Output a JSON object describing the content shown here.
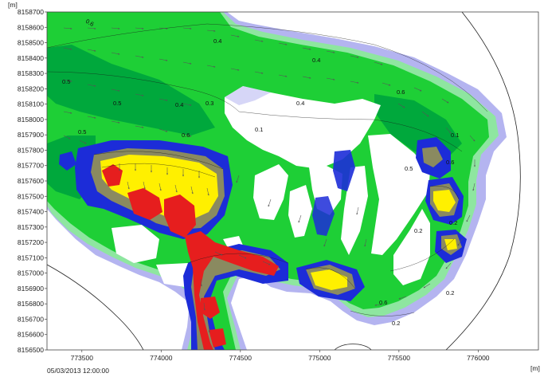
{
  "chart_data": {
    "type": "heatmap",
    "x_unit": "[m]",
    "y_unit": "[m]",
    "x_ticks": [
      773500,
      774000,
      774500,
      775000,
      775500,
      776000
    ],
    "y_ticks": [
      8156500,
      8156600,
      8156700,
      8156800,
      8156900,
      8157000,
      8157100,
      8157200,
      8157300,
      8157400,
      8157500,
      8157600,
      8157700,
      8157800,
      8157900,
      8158000,
      8158100,
      8158200,
      8158300,
      8158400,
      8158500,
      8158600,
      8158700
    ],
    "xlim": [
      773280,
      776380
    ],
    "ylim": [
      8156500,
      8158700
    ],
    "grid": false,
    "legend": "none",
    "contour_labels": [
      "0.6",
      "0.4",
      "0.4",
      "0.6",
      "0.5",
      "0.5",
      "0.4",
      "0.3",
      "0.4",
      "0.1",
      "0.6",
      "0.5",
      "0.1",
      "0.5",
      "0.6",
      "0.2",
      "0.2",
      "0.2",
      "0.6",
      "0.2"
    ],
    "colors": {
      "lavender": "#b4b4f0",
      "pale_green": "#8ee6a0",
      "light_green": "#22d43c",
      "green": "#00c800",
      "dark_green": "#00a03c",
      "blue": "#1c2cd8",
      "olive": "#8a8a60",
      "yellow": "#fff000",
      "red": "#e61e1e"
    }
  },
  "timestamp": "05/03/2013 12:00:00"
}
